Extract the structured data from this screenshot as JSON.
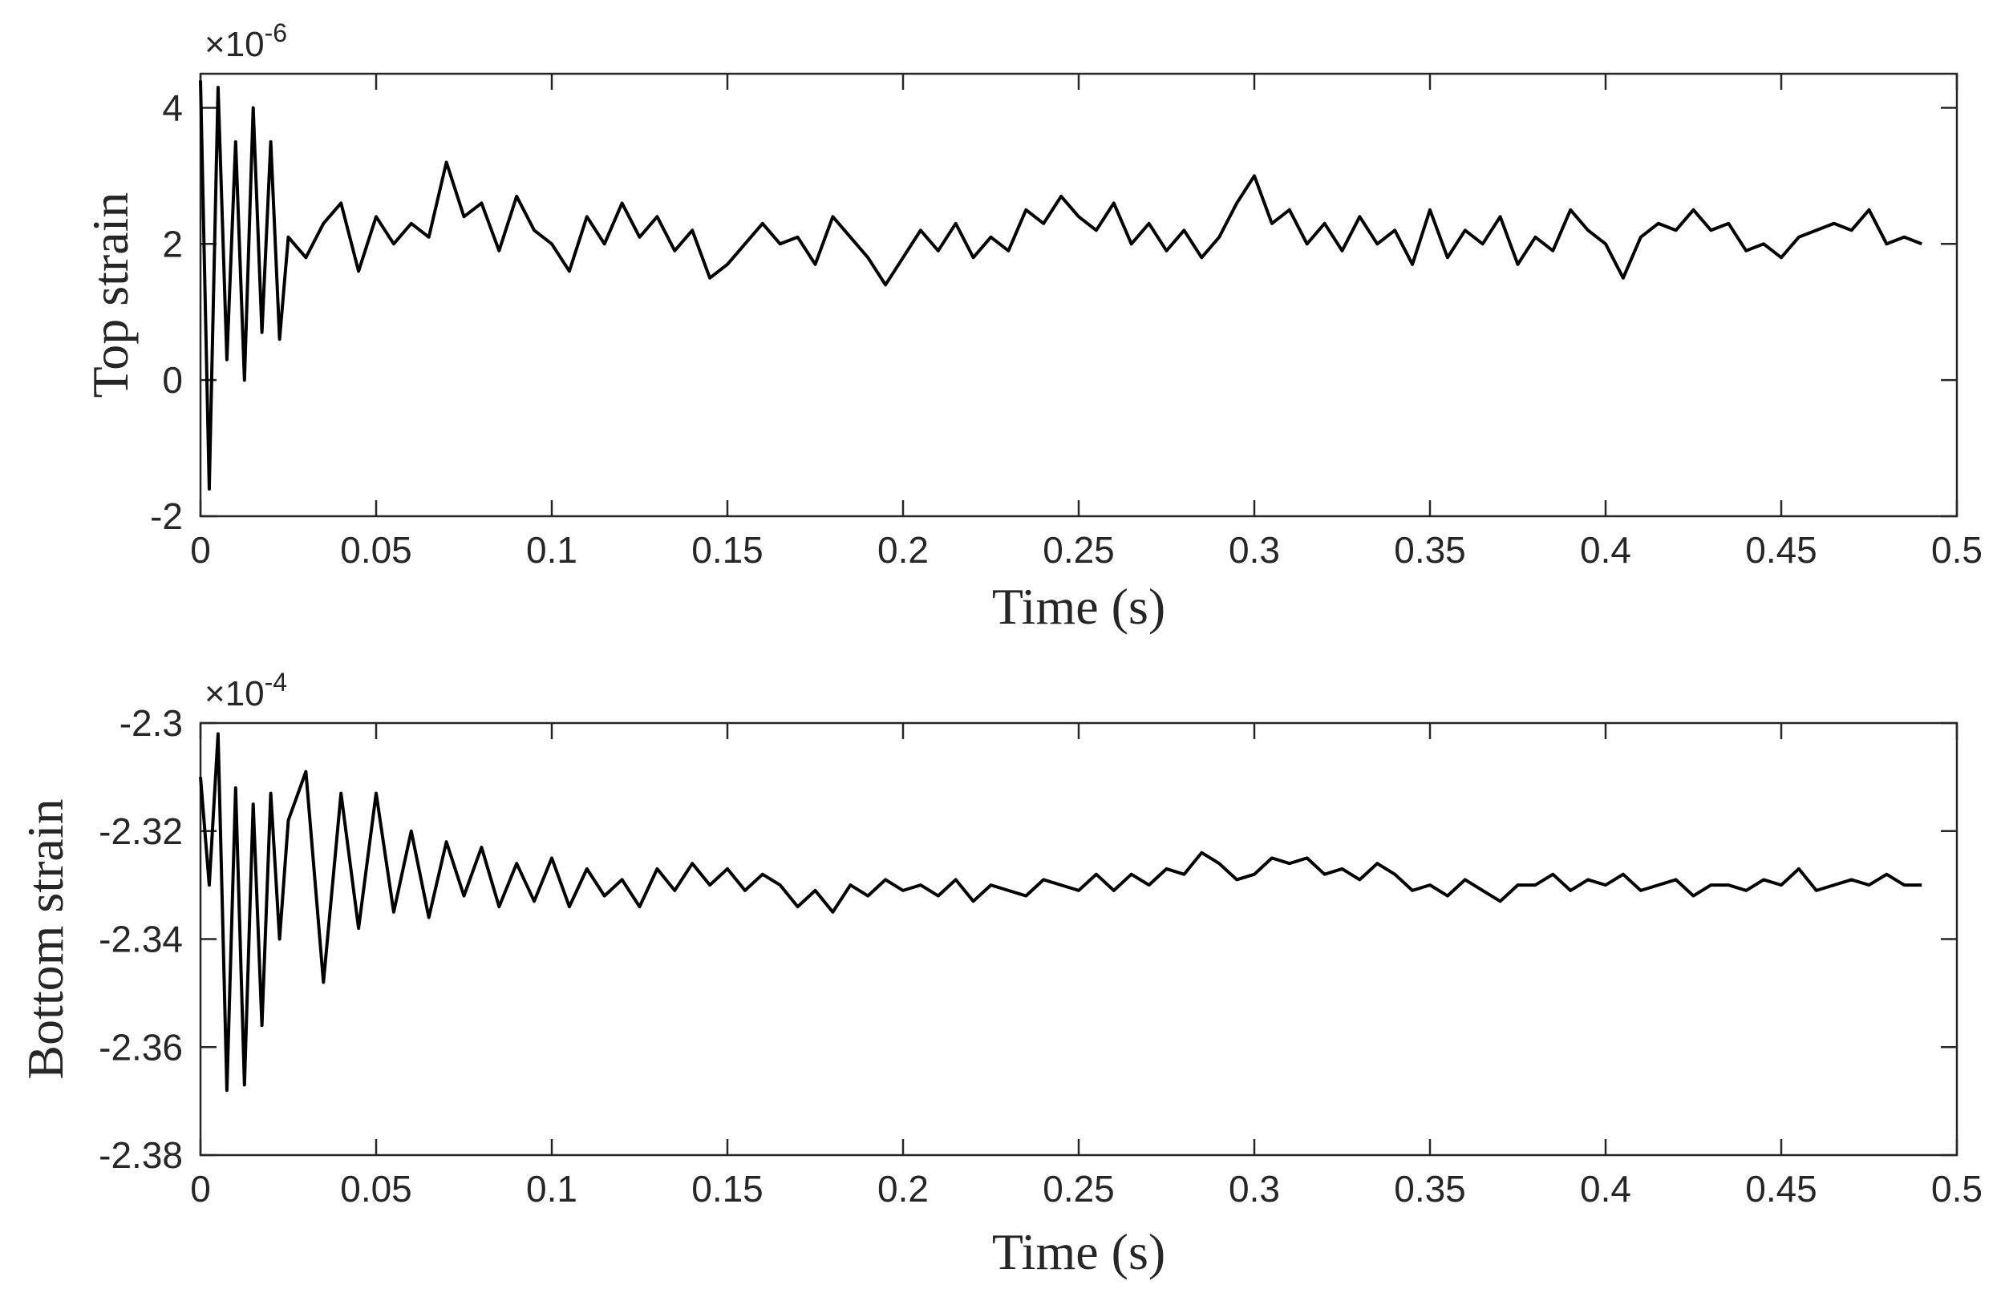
{
  "chart_data": [
    {
      "type": "line",
      "x_label": "Time (s)",
      "y_label": "Top strain",
      "axis_multiplier": {
        "base": "×10",
        "power": "-6"
      },
      "color": "#000000",
      "xlim": [
        0,
        0.5
      ],
      "ylim": [
        -2,
        4.5
      ],
      "xticks": [
        0,
        0.05,
        0.1,
        0.15,
        0.2,
        0.25,
        0.3,
        0.35,
        0.4,
        0.45,
        0.5
      ],
      "yticks": [
        -2,
        0,
        2,
        4
      ],
      "x": [
        0,
        0.0025,
        0.005,
        0.0075,
        0.01,
        0.0125,
        0.015,
        0.0175,
        0.02,
        0.0225,
        0.025,
        0.03,
        0.035,
        0.04,
        0.045,
        0.05,
        0.055,
        0.06,
        0.065,
        0.07,
        0.075,
        0.08,
        0.085,
        0.09,
        0.095,
        0.1,
        0.105,
        0.11,
        0.115,
        0.12,
        0.125,
        0.13,
        0.135,
        0.14,
        0.145,
        0.15,
        0.155,
        0.16,
        0.165,
        0.17,
        0.175,
        0.18,
        0.185,
        0.19,
        0.195,
        0.2,
        0.205,
        0.21,
        0.215,
        0.22,
        0.225,
        0.23,
        0.235,
        0.24,
        0.245,
        0.25,
        0.255,
        0.26,
        0.265,
        0.27,
        0.275,
        0.28,
        0.285,
        0.29,
        0.295,
        0.3,
        0.305,
        0.31,
        0.315,
        0.32,
        0.325,
        0.33,
        0.335,
        0.34,
        0.345,
        0.35,
        0.355,
        0.36,
        0.365,
        0.37,
        0.375,
        0.38,
        0.385,
        0.39,
        0.395,
        0.4,
        0.405,
        0.41,
        0.415,
        0.42,
        0.425,
        0.43,
        0.435,
        0.44,
        0.445,
        0.45,
        0.455,
        0.46,
        0.465,
        0.47,
        0.475,
        0.48,
        0.485,
        0.49
      ],
      "values": [
        4.4,
        -1.6,
        4.3,
        0.3,
        3.5,
        0,
        4.0,
        0.7,
        3.5,
        0.6,
        2.1,
        1.8,
        2.3,
        2.6,
        1.6,
        2.4,
        2.0,
        2.3,
        2.1,
        3.2,
        2.4,
        2.6,
        1.9,
        2.7,
        2.2,
        2.0,
        1.6,
        2.4,
        2.0,
        2.6,
        2.1,
        2.4,
        1.9,
        2.2,
        1.5,
        1.7,
        2.0,
        2.3,
        2.0,
        2.1,
        1.7,
        2.4,
        2.1,
        1.8,
        1.4,
        1.8,
        2.2,
        1.9,
        2.3,
        1.8,
        2.1,
        1.9,
        2.5,
        2.3,
        2.7,
        2.4,
        2.2,
        2.6,
        2.0,
        2.3,
        1.9,
        2.2,
        1.8,
        2.1,
        2.6,
        3.0,
        2.3,
        2.5,
        2.0,
        2.3,
        1.9,
        2.4,
        2.0,
        2.2,
        1.7,
        2.5,
        1.8,
        2.2,
        2.0,
        2.4,
        1.7,
        2.1,
        1.9,
        2.5,
        2.2,
        2.0,
        1.5,
        2.1,
        2.3,
        2.2,
        2.5,
        2.2,
        2.3,
        1.9,
        2.0,
        1.8,
        2.1,
        2.2,
        2.3,
        2.2,
        2.5,
        2.0,
        2.1,
        2.0
      ]
    },
    {
      "type": "line",
      "x_label": "Time (s)",
      "y_label": "Bottom strain",
      "axis_multiplier": {
        "base": "×10",
        "power": "-4"
      },
      "color": "#000000",
      "xlim": [
        0,
        0.5
      ],
      "ylim": [
        -2.38,
        -2.3
      ],
      "xticks": [
        0,
        0.05,
        0.1,
        0.15,
        0.2,
        0.25,
        0.3,
        0.35,
        0.4,
        0.45,
        0.5
      ],
      "yticks": [
        -2.38,
        -2.36,
        -2.34,
        -2.32,
        -2.3
      ],
      "x": [
        0,
        0.0025,
        0.005,
        0.0075,
        0.01,
        0.0125,
        0.015,
        0.0175,
        0.02,
        0.0225,
        0.025,
        0.03,
        0.035,
        0.04,
        0.045,
        0.05,
        0.055,
        0.06,
        0.065,
        0.07,
        0.075,
        0.08,
        0.085,
        0.09,
        0.095,
        0.1,
        0.105,
        0.11,
        0.115,
        0.12,
        0.125,
        0.13,
        0.135,
        0.14,
        0.145,
        0.15,
        0.155,
        0.16,
        0.165,
        0.17,
        0.175,
        0.18,
        0.185,
        0.19,
        0.195,
        0.2,
        0.205,
        0.21,
        0.215,
        0.22,
        0.225,
        0.23,
        0.235,
        0.24,
        0.245,
        0.25,
        0.255,
        0.26,
        0.265,
        0.27,
        0.275,
        0.28,
        0.285,
        0.29,
        0.295,
        0.3,
        0.305,
        0.31,
        0.315,
        0.32,
        0.325,
        0.33,
        0.335,
        0.34,
        0.345,
        0.35,
        0.355,
        0.36,
        0.365,
        0.37,
        0.375,
        0.38,
        0.385,
        0.39,
        0.395,
        0.4,
        0.405,
        0.41,
        0.415,
        0.42,
        0.425,
        0.43,
        0.435,
        0.44,
        0.445,
        0.45,
        0.455,
        0.46,
        0.465,
        0.47,
        0.475,
        0.48,
        0.485,
        0.49
      ],
      "values": [
        -2.31,
        -2.33,
        -2.302,
        -2.368,
        -2.312,
        -2.367,
        -2.315,
        -2.356,
        -2.313,
        -2.34,
        -2.318,
        -2.309,
        -2.348,
        -2.313,
        -2.338,
        -2.313,
        -2.335,
        -2.32,
        -2.336,
        -2.322,
        -2.332,
        -2.323,
        -2.334,
        -2.326,
        -2.333,
        -2.325,
        -2.334,
        -2.327,
        -2.332,
        -2.329,
        -2.334,
        -2.327,
        -2.331,
        -2.326,
        -2.33,
        -2.327,
        -2.331,
        -2.328,
        -2.33,
        -2.334,
        -2.331,
        -2.335,
        -2.33,
        -2.332,
        -2.329,
        -2.331,
        -2.33,
        -2.332,
        -2.329,
        -2.333,
        -2.33,
        -2.331,
        -2.332,
        -2.329,
        -2.33,
        -2.331,
        -2.328,
        -2.331,
        -2.328,
        -2.33,
        -2.327,
        -2.328,
        -2.324,
        -2.326,
        -2.329,
        -2.328,
        -2.325,
        -2.326,
        -2.325,
        -2.328,
        -2.327,
        -2.329,
        -2.326,
        -2.328,
        -2.331,
        -2.33,
        -2.332,
        -2.329,
        -2.331,
        -2.333,
        -2.33,
        -2.33,
        -2.328,
        -2.331,
        -2.329,
        -2.33,
        -2.328,
        -2.331,
        -2.33,
        -2.329,
        -2.332,
        -2.33,
        -2.33,
        -2.331,
        -2.329,
        -2.33,
        -2.327,
        -2.331,
        -2.33,
        -2.329,
        -2.33,
        -2.328,
        -2.33,
        -2.33
      ]
    }
  ]
}
